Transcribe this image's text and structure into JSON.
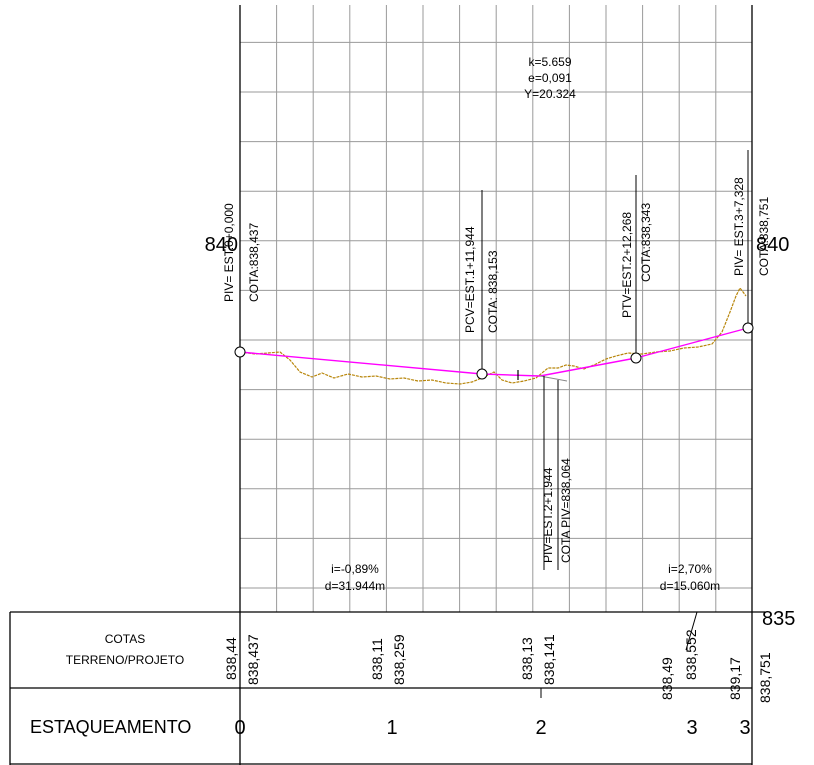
{
  "header_annotations": {
    "k": "k=5.659",
    "e": "e=0,091",
    "y": "Y=20.324"
  },
  "elevation_labels": {
    "left_840": "840",
    "right_840": "840",
    "right_835": "835"
  },
  "vertical_notes": {
    "piv_start_est": "PIV= EST.0+0,000",
    "piv_start_cota": "COTA:838,437",
    "pcv_est": "PCV=EST.1+11,944",
    "pcv_cota": "COTA: 838,153",
    "ptv_est": "PTV=EST.2+12,268",
    "ptv_cota": "COTA:838,343",
    "piv_end_est": "PIV= EST.3+7,328",
    "piv_end_cota": "COTA:838,751",
    "piv_mid_est": "PIV=EST.2+1.944",
    "piv_mid_cota": "COTA PIV=838,064"
  },
  "slopes": [
    {
      "grade": "i=-0,89%",
      "length": "d=31.944m"
    },
    {
      "grade": "i=2,70%",
      "length": "d=15.060m"
    }
  ],
  "table": {
    "cotas_header_line1": "COTAS",
    "cotas_header_line2": "TERRENO/PROJETO",
    "estaqueamento_header": "ESTAQUEAMENTO",
    "cotas_pairs": [
      {
        "terreno": "838,44",
        "projeto": "838,437"
      },
      {
        "terreno": "838,11",
        "projeto": "838,259"
      },
      {
        "terreno": "838,13",
        "projeto": "838,141"
      },
      {
        "terreno": "838,49",
        "projeto": "838,552"
      },
      {
        "terreno": "839,17",
        "projeto": "838,751"
      }
    ],
    "stations": [
      "0",
      "1",
      "2",
      "3",
      "3"
    ]
  },
  "colors": {
    "grid": "#9a9a9a",
    "frame": "#000000",
    "project_line": "#ff00ff",
    "terrain_line": "#b8860b"
  }
}
